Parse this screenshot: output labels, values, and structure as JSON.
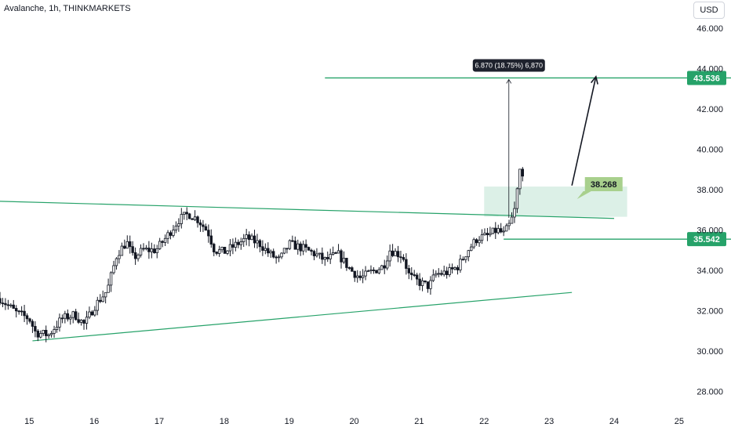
{
  "header": {
    "title": "Avalanche, 1h, THINKMARKETS",
    "currency": "USD"
  },
  "chart_data": {
    "type": "candlestick",
    "symbol": "Avalanche",
    "interval": "1h",
    "source": "THINKMARKETS",
    "y_ticks": [
      28,
      30,
      32,
      34,
      36,
      38,
      40,
      42,
      44,
      46
    ],
    "y_tick_labels": [
      "28.000",
      "30.000",
      "32.000",
      "34.000",
      "36.000",
      "38.000",
      "40.000",
      "42.000",
      "44.000",
      "46.000"
    ],
    "x_ticks": [
      15,
      16,
      17,
      18,
      19,
      20,
      21,
      22,
      23,
      24,
      25
    ],
    "x_tick_labels": [
      "15",
      "16",
      "17",
      "18",
      "19",
      "20",
      "21",
      "22",
      "23",
      "24",
      "25"
    ],
    "ylim": [
      27.0,
      47.4
    ],
    "xlim": [
      14.55,
      25.05
    ],
    "key_levels": [
      {
        "value": 43.536,
        "label": "43.536",
        "color": "#26a269"
      },
      {
        "value": 35.542,
        "label": "35.542",
        "color": "#26a269"
      }
    ],
    "callout": {
      "value": 38.268,
      "label": "38.268",
      "color": "#a8d08d"
    },
    "measure_label": "6.870 (18.75%) 6,870",
    "zone": {
      "x_start": 22.0,
      "x_end": 24.2,
      "y_low": 36.65,
      "y_high": 38.15
    },
    "trendlines": [
      {
        "x1": 14.55,
        "y1": 37.42,
        "x2": 24.0,
        "y2": 36.57
      },
      {
        "x1": 15.05,
        "y1": 30.5,
        "x2": 23.35,
        "y2": 32.9
      }
    ],
    "projection_arrow": {
      "x1": 23.35,
      "y1": 38.2,
      "x2": 23.72,
      "y2": 43.6
    },
    "anchors": [
      [
        14.55,
        32.6
      ],
      [
        14.8,
        31.9
      ],
      [
        15.0,
        31.6
      ],
      [
        15.1,
        30.9
      ],
      [
        15.3,
        30.8
      ],
      [
        15.5,
        31.6
      ],
      [
        15.7,
        31.8
      ],
      [
        15.85,
        31.3
      ],
      [
        16.0,
        32.2
      ],
      [
        16.2,
        33.0
      ],
      [
        16.35,
        34.8
      ],
      [
        16.5,
        35.4
      ],
      [
        16.6,
        34.6
      ],
      [
        16.75,
        35.0
      ],
      [
        16.95,
        35.0
      ],
      [
        17.1,
        35.6
      ],
      [
        17.3,
        36.5
      ],
      [
        17.45,
        36.8
      ],
      [
        17.6,
        36.5
      ],
      [
        17.75,
        35.9
      ],
      [
        17.85,
        35.0
      ],
      [
        18.0,
        34.9
      ],
      [
        18.2,
        35.3
      ],
      [
        18.35,
        35.6
      ],
      [
        18.55,
        35.3
      ],
      [
        18.7,
        34.8
      ],
      [
        18.85,
        34.5
      ],
      [
        19.0,
        35.3
      ],
      [
        19.2,
        35.1
      ],
      [
        19.4,
        34.8
      ],
      [
        19.55,
        34.5
      ],
      [
        19.75,
        34.8
      ],
      [
        19.95,
        34.0
      ],
      [
        20.1,
        33.6
      ],
      [
        20.25,
        33.9
      ],
      [
        20.45,
        34.2
      ],
      [
        20.55,
        35.0
      ],
      [
        20.75,
        34.7
      ],
      [
        20.85,
        33.7
      ],
      [
        21.0,
        33.4
      ],
      [
        21.15,
        33.2
      ],
      [
        21.25,
        33.8
      ],
      [
        21.45,
        33.9
      ],
      [
        21.6,
        34.2
      ],
      [
        21.75,
        35.0
      ],
      [
        21.9,
        35.6
      ],
      [
        22.05,
        35.7
      ],
      [
        22.2,
        36.0
      ],
      [
        22.3,
        35.8
      ],
      [
        22.4,
        36.3
      ],
      [
        22.48,
        37.1
      ],
      [
        22.55,
        38.9
      ],
      [
        22.62,
        37.6
      ]
    ]
  }
}
